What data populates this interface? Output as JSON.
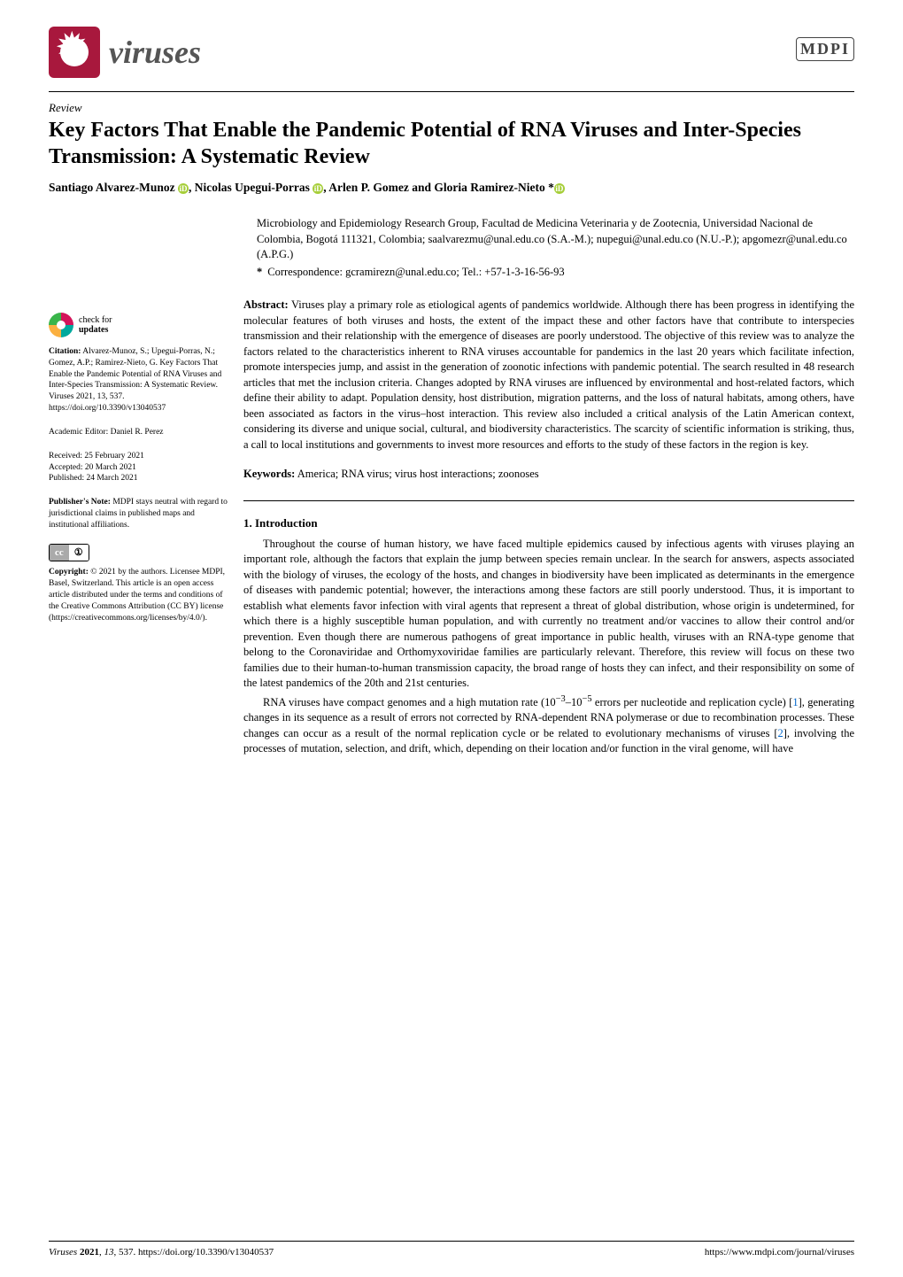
{
  "header": {
    "journal": "viruses",
    "publisher": "MDPI"
  },
  "article": {
    "type": "Review",
    "title": "Key Factors That Enable the Pandemic Potential of RNA Viruses and Inter-Species Transmission: A Systematic Review",
    "authors_html": "Santiago Alvarez-Munoz ⓘ, Nicolas Upegui-Porras ⓘ, Arlen P. Gomez and Gloria Ramirez-Nieto *ⓘ"
  },
  "affiliation": {
    "text": "Microbiology and Epidemiology Research Group, Facultad de Medicina Veterinaria y de Zootecnia, Universidad Nacional de Colombia, Bogotá 111321, Colombia; saalvarezmu@unal.edu.co (S.A.-M.); nupegui@unal.edu.co (N.U.-P.); apgomezr@unal.edu.co (A.P.G.)",
    "correspondence": "Correspondence: gcramirezn@unal.edu.co; Tel.: +57-1-3-16-56-93"
  },
  "abstract": {
    "label": "Abstract:",
    "text": "Viruses play a primary role as etiological agents of pandemics worldwide. Although there has been progress in identifying the molecular features of both viruses and hosts, the extent of the impact these and other factors have that contribute to interspecies transmission and their relationship with the emergence of diseases are poorly understood. The objective of this review was to analyze the factors related to the characteristics inherent to RNA viruses accountable for pandemics in the last 20 years which facilitate infection, promote interspecies jump, and assist in the generation of zoonotic infections with pandemic potential. The search resulted in 48 research articles that met the inclusion criteria. Changes adopted by RNA viruses are influenced by environmental and host-related factors, which define their ability to adapt. Population density, host distribution, migration patterns, and the loss of natural habitats, among others, have been associated as factors in the virus–host interaction. This review also included a critical analysis of the Latin American context, considering its diverse and unique social, cultural, and biodiversity characteristics. The scarcity of scientific information is striking, thus, a call to local institutions and governments to invest more resources and efforts to the study of these factors in the region is key."
  },
  "keywords": {
    "label": "Keywords:",
    "text": "America; RNA virus; virus host interactions; zoonoses"
  },
  "sidebar": {
    "check_updates": "check for\nupdates",
    "citation_label": "Citation:",
    "citation": " Alvarez-Munoz, S.; Upegui-Porras, N.; Gomez, A.P.; Ramirez-Nieto, G. Key Factors That Enable the Pandemic Potential of RNA Viruses and Inter-Species Transmission: A Systematic Review. Viruses 2021, 13, 537. https://doi.org/10.3390/v13040537",
    "editor_label": "Academic Editor: ",
    "editor": "Daniel R. Perez",
    "received": "Received: 25 February 2021",
    "accepted": "Accepted: 20 March 2021",
    "published": "Published: 24 March 2021",
    "pubnote_label": "Publisher's Note:",
    "pubnote": " MDPI stays neutral with regard to jurisdictional claims in published maps and institutional affiliations.",
    "copyright_label": "Copyright:",
    "copyright": " © 2021 by the authors. Licensee MDPI, Basel, Switzerland. This article is an open access article distributed under the terms and conditions of the Creative Commons Attribution (CC BY) license (https://creativecommons.org/licenses/by/4.0/)."
  },
  "intro": {
    "heading": "1. Introduction",
    "p1": "Throughout the course of human history, we have faced multiple epidemics caused by infectious agents with viruses playing an important role, although the factors that explain the jump between species remain unclear. In the search for answers, aspects associated with the biology of viruses, the ecology of the hosts, and changes in biodiversity have been implicated as determinants in the emergence of diseases with pandemic potential; however, the interactions among these factors are still poorly understood. Thus, it is important to establish what elements favor infection with viral agents that represent a threat of global distribution, whose origin is undetermined, for which there is a highly susceptible human population, and with currently no treatment and/or vaccines to allow their control and/or prevention. Even though there are numerous pathogens of great importance in public health, viruses with an RNA-type genome that belong to the Coronaviridae and Orthomyxoviridae families are particularly relevant. Therefore, this review will focus on these two families due to their human-to-human transmission capacity, the broad range of hosts they can infect, and their responsibility on some of the latest pandemics of the 20th and 21st centuries.",
    "p2_a": "RNA viruses have compact genomes and a high mutation rate (10",
    "p2_b": "−3",
    "p2_c": "–10",
    "p2_d": "−5",
    "p2_e": " errors per nucleotide and replication cycle) [",
    "p2_f": "1",
    "p2_g": "], generating changes in its sequence as a result of errors not corrected by RNA-dependent RNA polymerase or due to recombination processes. These changes can occur as a result of the normal replication cycle or be related to evolutionary mechanisms of viruses [",
    "p2_h": "2",
    "p2_i": "], involving the processes of mutation, selection, and drift, which, depending on their location and/or function in the viral genome, will have"
  },
  "footer": {
    "left": "Viruses 2021, 13, 537. https://doi.org/10.3390/v13040537",
    "right": "https://www.mdpi.com/journal/viruses"
  },
  "colors": {
    "accent": "#a8183d",
    "link": "#0066cc",
    "orcid": "#a6ce39"
  }
}
